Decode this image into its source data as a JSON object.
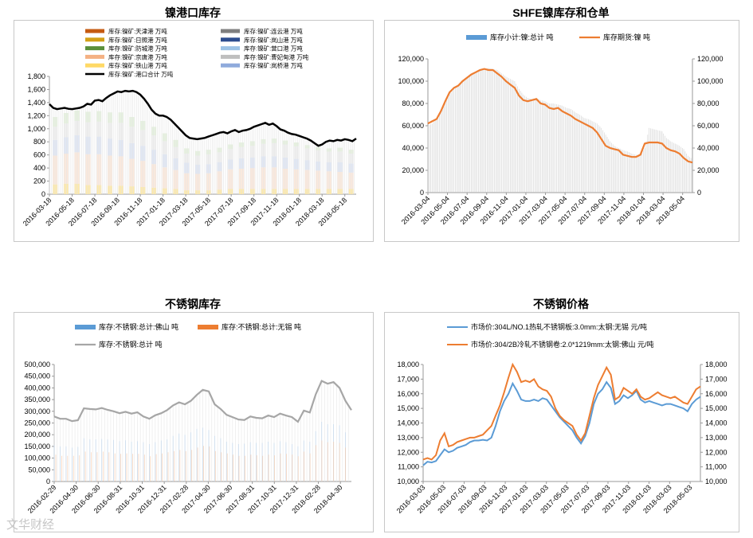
{
  "charts": [
    {
      "type": "area",
      "title": "镍港口库存",
      "yticks": [
        "0",
        "200",
        "400",
        "600",
        "800",
        "1,000",
        "1,200",
        "1,400",
        "1,600",
        "1,800"
      ],
      "ylim": [
        0,
        1800
      ],
      "x_labels": [
        "2016-03-18",
        "2016-05-18",
        "2016-07-18",
        "2016-09-18",
        "2016-11-18",
        "2017-01-18",
        "2017-03-18",
        "2017-05-18",
        "2017-07-18",
        "2017-09-18",
        "2017-11-18",
        "2018-01-18",
        "2018-03-18",
        "2018-05-18"
      ],
      "legend": [
        {
          "name": "库存:镍矿:天津港 万吨",
          "color": "#c55a11",
          "style": "bar"
        },
        {
          "name": "库存:镍矿:连云港 万吨",
          "color": "#7f7f7f",
          "style": "bar"
        },
        {
          "name": "库存:镍矿:日照港 万吨",
          "color": "#d4a017",
          "style": "bar"
        },
        {
          "name": "库存:镍矿:岚山港 万吨",
          "color": "#2e4e8f",
          "style": "bar"
        },
        {
          "name": "库存:镍矿:防城港 万吨",
          "color": "#5a8f3a",
          "style": "bar"
        },
        {
          "name": "库存:镍矿:营口港 万吨",
          "color": "#9dc3e6",
          "style": "bar"
        },
        {
          "name": "库存:镍矿:京唐港 万吨",
          "color": "#f4b183",
          "style": "bar"
        },
        {
          "name": "库存:镍矿:曹妃甸港 万吨",
          "color": "#bfbfbf",
          "style": "bar"
        },
        {
          "name": "库存:镍矿:铁山港 万吨",
          "color": "#ffd966",
          "style": "bar"
        },
        {
          "name": "库存:镍矿:岚桥港 万吨",
          "color": "#8faadc",
          "style": "bar"
        },
        {
          "name": "库存:镍矿:港口合计 万吨",
          "color": "#000000",
          "style": "line"
        }
      ],
      "total_series": {
        "name": "库存:镍矿:港口合计 万吨",
        "color": "#000000",
        "values": [
          1375,
          1320,
          1300,
          1310,
          1320,
          1305,
          1300,
          1310,
          1320,
          1340,
          1380,
          1370,
          1430,
          1440,
          1420,
          1470,
          1510,
          1540,
          1570,
          1560,
          1580,
          1570,
          1580,
          1560,
          1520,
          1460,
          1380,
          1290,
          1230,
          1200,
          1200,
          1180,
          1140,
          1080,
          1020,
          960,
          900,
          860,
          850,
          840,
          850,
          860,
          880,
          900,
          920,
          940,
          950,
          930,
          960,
          980,
          950,
          970,
          980,
          1000,
          1030,
          1050,
          1070,
          1090,
          1060,
          1080,
          1040,
          990,
          970,
          940,
          920,
          910,
          890,
          870,
          850,
          820,
          780,
          740,
          760,
          800,
          820,
          810,
          830,
          820,
          840,
          830,
          810,
          850
        ]
      },
      "stack_values": [
        [
          150,
          440,
          240,
          200,
          150,
          0
        ],
        [
          160,
          460,
          250,
          210,
          160,
          0
        ],
        [
          160,
          480,
          260,
          220,
          160,
          0
        ],
        [
          140,
          470,
          270,
          220,
          160,
          0
        ],
        [
          140,
          470,
          270,
          230,
          160,
          0
        ],
        [
          130,
          460,
          260,
          240,
          160,
          0
        ],
        [
          130,
          450,
          250,
          260,
          160,
          0
        ],
        [
          120,
          420,
          240,
          250,
          150,
          0
        ],
        [
          110,
          400,
          230,
          240,
          140,
          0
        ],
        [
          100,
          360,
          220,
          220,
          130,
          0
        ],
        [
          90,
          320,
          200,
          200,
          120,
          0
        ],
        [
          80,
          290,
          180,
          170,
          110,
          0
        ],
        [
          60,
          260,
          160,
          140,
          80,
          0
        ],
        [
          60,
          250,
          140,
          140,
          70,
          0
        ],
        [
          60,
          260,
          140,
          150,
          70,
          0
        ],
        [
          70,
          280,
          140,
          150,
          70,
          0
        ],
        [
          80,
          300,
          150,
          160,
          70,
          0
        ],
        [
          80,
          310,
          160,
          170,
          70,
          0
        ],
        [
          80,
          320,
          160,
          180,
          70,
          0
        ],
        [
          80,
          330,
          170,
          190,
          70,
          0
        ],
        [
          80,
          330,
          170,
          200,
          70,
          0
        ],
        [
          80,
          310,
          170,
          200,
          60,
          0
        ],
        [
          80,
          300,
          160,
          190,
          60,
          0
        ],
        [
          80,
          290,
          150,
          180,
          50,
          0
        ],
        [
          80,
          280,
          140,
          170,
          50,
          0
        ],
        [
          80,
          270,
          140,
          160,
          50,
          0
        ],
        [
          80,
          260,
          150,
          160,
          60,
          0
        ],
        [
          80,
          250,
          140,
          150,
          60,
          0
        ]
      ],
      "stack_colors": [
        "#ffe699",
        "#fbe5d6",
        "#dae3f3",
        "#ededed",
        "#e2f0d9",
        "#f8cbad"
      ]
    },
    {
      "type": "bar+line",
      "title": "SHFE镍库存和仓单",
      "yticks": [
        "0",
        "20,000",
        "40,000",
        "60,000",
        "80,000",
        "100,000",
        "120,000"
      ],
      "y2ticks": [
        "0",
        "20,000",
        "40,000",
        "60,000",
        "80,000",
        "100,000",
        "120,000"
      ],
      "ylim": [
        0,
        120000
      ],
      "x_labels": [
        "2016-03-04",
        "2016-05-04",
        "2016-07-04",
        "2016-09-04",
        "2016-11-04",
        "2017-01-04",
        "2017-03-04",
        "2017-05-04",
        "2017-07-04",
        "2017-09-04",
        "2017-11-04",
        "2018-01-04",
        "2018-03-04",
        "2018-05-04"
      ],
      "series": [
        {
          "name": "库存小计:镍:总计 吨",
          "color": "#5b9bd5",
          "style": "bar",
          "values": [
            60000,
            62000,
            66000,
            72000,
            80000,
            88000,
            93000,
            97000,
            101000,
            104000,
            106000,
            108000,
            110000,
            111000,
            112000,
            111000,
            110000,
            107000,
            104000,
            102000,
            100000,
            93000,
            88000,
            85000,
            84000,
            85000,
            83000,
            82000,
            80000,
            80000,
            79000,
            78000,
            76000,
            75000,
            72000,
            70000,
            67000,
            66000,
            64000,
            62000,
            58000,
            52000,
            46000,
            42000,
            40000,
            38000,
            37000,
            35000,
            34000,
            34000,
            40000,
            58000,
            57000,
            56000,
            55000,
            49000,
            46000,
            44000,
            42000,
            39000,
            33000,
            30000
          ]
        },
        {
          "name": "库存期货:镍 吨",
          "color": "#ed7d31",
          "style": "line",
          "values": [
            62000,
            64000,
            66000,
            73000,
            82000,
            90000,
            94000,
            96000,
            100000,
            103000,
            106000,
            108000,
            110000,
            111000,
            110000,
            110000,
            107000,
            104000,
            100000,
            97000,
            94000,
            87000,
            83000,
            82000,
            83000,
            84000,
            80000,
            79000,
            76000,
            75000,
            76000,
            73000,
            71000,
            69000,
            66000,
            64000,
            62000,
            60000,
            58000,
            54000,
            48000,
            42000,
            40000,
            39000,
            38000,
            34000,
            33000,
            32000,
            32000,
            34000,
            44000,
            45000,
            45000,
            45000,
            44000,
            40000,
            38000,
            37000,
            35000,
            31000,
            28000,
            27000
          ]
        }
      ]
    },
    {
      "type": "line",
      "title": "不锈钢库存",
      "yticks": [
        "0",
        "50,000",
        "100,000",
        "150,000",
        "200,000",
        "250,000",
        "300,000",
        "350,000",
        "400,000",
        "450,000",
        "500,000"
      ],
      "ylim": [
        0,
        500000
      ],
      "x_labels": [
        "2016-02-29",
        "2016-04-30",
        "2016-06-30",
        "2016-08-31",
        "2016-10-31",
        "2016-12-31",
        "2017-02-28",
        "2017-04-30",
        "2017-06-30",
        "2017-08-31",
        "2017-10-31",
        "2017-12-31",
        "2018-02-28",
        "2018-04-30"
      ],
      "series": [
        {
          "name": "库存:不锈钢:总计:佛山 吨",
          "color": "#5b9bd5",
          "style": "bar",
          "values": [
            155000,
            150000,
            150000,
            145000,
            148000,
            185000,
            180000,
            180000,
            182000,
            180000,
            178000,
            172000,
            176000,
            170000,
            172000,
            168000,
            160000,
            168000,
            175000,
            180000,
            195000,
            205000,
            200000,
            210000,
            225000,
            230000,
            220000,
            195000,
            185000,
            170000,
            165000,
            160000,
            162000,
            168000,
            165000,
            165000,
            170000,
            165000,
            172000,
            168000,
            160000,
            150000,
            175000,
            170000,
            215000,
            255000,
            245000,
            245000,
            240000,
            210000,
            185000
          ]
        },
        {
          "name": "库存:不锈钢:总计:无锡 吨",
          "color": "#ed7d31",
          "style": "bar",
          "values": [
            115000,
            110000,
            110000,
            110000,
            112000,
            128000,
            125000,
            125000,
            128000,
            125000,
            120000,
            118000,
            120000,
            118000,
            118000,
            115000,
            108000,
            117000,
            120000,
            125000,
            130000,
            135000,
            130000,
            135000,
            145000,
            152000,
            150000,
            130000,
            125000,
            120000,
            115000,
            110000,
            110000,
            115000,
            112000,
            110000,
            115000,
            112000,
            120000,
            118000,
            115000,
            108000,
            128000,
            120000,
            155000,
            175000,
            168000,
            170000,
            165000,
            145000,
            120000
          ]
        },
        {
          "name": "库存:不锈钢:总计 吨",
          "color": "#a6a6a6",
          "style": "line",
          "values": [
            278000,
            268000,
            268000,
            258000,
            262000,
            313000,
            310000,
            308000,
            314000,
            306000,
            300000,
            292000,
            298000,
            290000,
            296000,
            278000,
            268000,
            283000,
            292000,
            305000,
            325000,
            338000,
            330000,
            345000,
            370000,
            392000,
            385000,
            330000,
            310000,
            285000,
            275000,
            265000,
            263000,
            278000,
            272000,
            270000,
            282000,
            275000,
            290000,
            282000,
            275000,
            255000,
            303000,
            295000,
            372000,
            430000,
            418000,
            425000,
            400000,
            345000,
            305000
          ]
        }
      ]
    },
    {
      "type": "line",
      "title": "不锈钢价格",
      "yticks": [
        "10,000",
        "11,000",
        "12,000",
        "13,000",
        "14,000",
        "15,000",
        "16,000",
        "17,000",
        "18,000"
      ],
      "y2ticks": [
        "10,000",
        "11,000",
        "12,000",
        "13,000",
        "14,000",
        "15,000",
        "16,000",
        "17,000",
        "18,000"
      ],
      "ylim": [
        10000,
        18000
      ],
      "x_labels": [
        "2016-03-03",
        "2016-05-03",
        "2016-07-03",
        "2016-09-03",
        "2016-11-03",
        "2017-01-03",
        "2017-03-03",
        "2017-05-03",
        "2017-07-03",
        "2017-09-03",
        "2017-11-03",
        "2018-01-03",
        "2018-03-03",
        "2018-05-03"
      ],
      "series": [
        {
          "name": "市场价:304L/NO.1热轧不锈钢板:3.0mm:太钢:无锡 元/吨",
          "color": "#5b9bd5",
          "style": "line",
          "values": [
            11100,
            11350,
            11300,
            11400,
            11800,
            12200,
            12000,
            12100,
            12300,
            12400,
            12500,
            12700,
            12800,
            12800,
            12850,
            12800,
            13000,
            13800,
            14800,
            15500,
            16000,
            16700,
            16200,
            15600,
            15500,
            15500,
            15600,
            15500,
            15700,
            15600,
            15200,
            14800,
            14400,
            14100,
            13800,
            13500,
            13000,
            12600,
            13100,
            14000,
            15300,
            16000,
            16300,
            16800,
            16400,
            15300,
            15500,
            15900,
            15700,
            15900,
            16200,
            15600,
            15400,
            15500,
            15400,
            15300,
            15200,
            15300,
            15300,
            15200,
            15100,
            15000,
            14800,
            15300,
            15600,
            15800
          ]
        },
        {
          "name": "市场价:304/2B冷轧不锈钢卷:2.0*1219mm:太钢:佛山 元/吨",
          "color": "#ed7d31",
          "style": "line",
          "values": [
            11500,
            11600,
            11500,
            11800,
            12800,
            13300,
            12400,
            12500,
            12700,
            12800,
            12900,
            13000,
            13000,
            13100,
            13200,
            13500,
            13800,
            14500,
            15200,
            16100,
            17100,
            18000,
            17500,
            16800,
            16900,
            16800,
            17000,
            16500,
            16300,
            16200,
            15800,
            15000,
            14500,
            14200,
            14000,
            13800,
            13200,
            12800,
            13300,
            14500,
            15700,
            16600,
            17200,
            17800,
            17300,
            15600,
            15800,
            16400,
            16200,
            16000,
            16300,
            15800,
            15600,
            15700,
            15900,
            16100,
            15900,
            15800,
            15700,
            15800,
            15600,
            15400,
            15300,
            15800,
            16300,
            16500
          ]
        }
      ]
    }
  ],
  "watermark": "文华财经"
}
